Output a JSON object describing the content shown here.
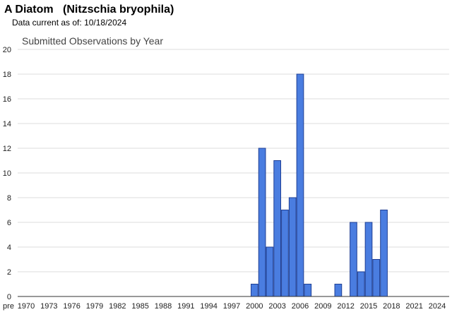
{
  "page": {
    "species_common": "A Diatom",
    "species_scientific": "(Nitzschia bryophila)",
    "data_current_label": "Data current as of:",
    "data_current_date": "10/18/2024"
  },
  "chart_data": {
    "type": "bar",
    "title": "Submitted Observations by Year",
    "xlabel": "",
    "ylabel": "",
    "ylim": [
      0,
      20
    ],
    "yticks": [
      0,
      2,
      4,
      6,
      8,
      10,
      12,
      14,
      16,
      18,
      20
    ],
    "grid": true,
    "legend": "none",
    "bar_color": "#4a7de0",
    "bar_border_color": "#1f3f94",
    "categories": [
      "pre",
      "1970",
      "1971",
      "1972",
      "1973",
      "1974",
      "1975",
      "1976",
      "1977",
      "1978",
      "1979",
      "1980",
      "1981",
      "1982",
      "1983",
      "1984",
      "1985",
      "1986",
      "1987",
      "1988",
      "1989",
      "1990",
      "1991",
      "1992",
      "1993",
      "1994",
      "1995",
      "1996",
      "1997",
      "1998",
      "1999",
      "2000",
      "2001",
      "2002",
      "2003",
      "2004",
      "2005",
      "2006",
      "2007",
      "2008",
      "2009",
      "2010",
      "2011",
      "2012",
      "2013",
      "2014",
      "2015",
      "2016",
      "2017",
      "2018",
      "2019",
      "2020",
      "2021",
      "2022",
      "2023",
      "2024"
    ],
    "values": [
      0,
      0,
      0,
      0,
      0,
      0,
      0,
      0,
      0,
      0,
      0,
      0,
      0,
      0,
      0,
      0,
      0,
      0,
      0,
      0,
      0,
      0,
      0,
      0,
      0,
      0,
      0,
      0,
      0,
      0,
      0,
      1,
      12,
      4,
      11,
      7,
      8,
      18,
      1,
      0,
      0,
      0,
      1,
      0,
      6,
      2,
      6,
      3,
      7,
      0,
      0,
      0,
      0,
      0,
      0,
      0
    ],
    "x_tick_labels": [
      "pre",
      "1970",
      "1973",
      "1976",
      "1979",
      "1982",
      "1985",
      "1988",
      "1991",
      "1994",
      "1997",
      "2000",
      "2003",
      "2006",
      "2009",
      "2012",
      "2015",
      "2018",
      "2021",
      "2024"
    ]
  }
}
